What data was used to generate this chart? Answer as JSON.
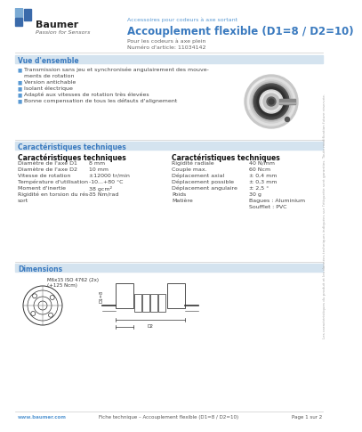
{
  "bg_color": "#ffffff",
  "header": {
    "brand": "Baumer",
    "tagline": "Passion for Sensors",
    "subtitle_small": "Accessoires pour codeurs à axe sortant",
    "title": "Accouplement flexible (D1=8 / D2=10)",
    "desc1": "Pour les codeurs à axe plein",
    "article": "Numéro d'article: 11034142"
  },
  "section1_title": "Vue d'ensemble",
  "section1_bullets": [
    [
      "Transmission sans jeu et synchronisée angulairement des mouve-",
      true
    ],
    [
      "ments de rotation",
      false
    ],
    [
      "Version antichable",
      true
    ],
    [
      "Isolant électrique",
      true
    ],
    [
      "Adapté aux vitesses de rotation très élevées",
      true
    ],
    [
      "Bonne compensation de tous les défauts d'alignement",
      true
    ]
  ],
  "section2_title": "Caractéristiques techniques",
  "left_specs_title": "Caractéristiques techniques",
  "left_specs": [
    [
      "Diamètre de l'axe D1",
      "8 mm"
    ],
    [
      "Diamètre de l'axe D2",
      "10 mm"
    ],
    [
      "Vitesse de rotation",
      "±12000 tr/min"
    ],
    [
      "Température d'utilisation",
      "-10...+80 °C"
    ],
    [
      "Moment d'inertie",
      "38 gcm²"
    ],
    [
      "Rigidité en torsion du rés-",
      "35 Nm/rad"
    ],
    [
      "sort",
      ""
    ]
  ],
  "right_specs_title": "Caractéristiques techniques",
  "right_specs": [
    [
      "Rigidité radiale",
      "40 N/mm"
    ],
    [
      "Couple max.",
      "60 Ncm"
    ],
    [
      "Déplacement axial",
      "± 0,4 mm"
    ],
    [
      "Déplacement possible",
      "± 0,3 mm"
    ],
    [
      "Déplacement angulaire",
      "± 2,5 °"
    ],
    [
      "Poids",
      "30 g"
    ],
    [
      "Matière",
      "Bagues : Aluminium"
    ],
    [
      "",
      "Soufflet : PVC"
    ]
  ],
  "section3_title": "Dimensions",
  "dim_note1": "M6x15 ISO 4762 (2x)",
  "dim_note2": "(+125 Ncm)",
  "footer_url": "www.baumer.com",
  "footer_center": "Fiche technique – Accouplement flexible (D1=8 / D2=10)",
  "footer_right": "Page 1 sur 2",
  "watermark": "Les caractéristiques du produit et les données techniques indiquées sur l'étiquette sont garanties. Toute modification future réservée.",
  "section_header_color": "#d4e3ef",
  "section_header_text_color": "#3a7abf",
  "title_color": "#3a7abf",
  "subtitle_color": "#5a9ad4",
  "body_text_color": "#444444",
  "separator_color": "#cccccc",
  "logo_col1": "#7aaad4",
  "logo_col2": "#3a6aaa"
}
